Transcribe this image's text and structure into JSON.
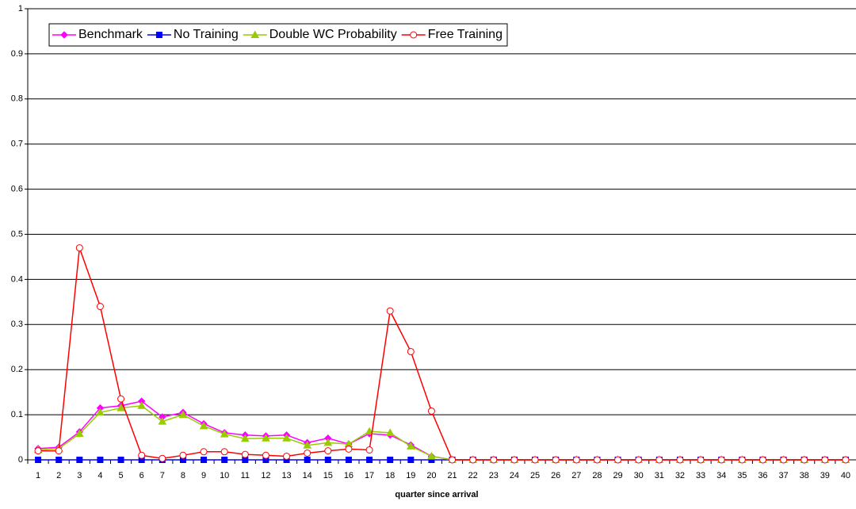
{
  "chart_data": {
    "type": "line",
    "x_label": "quarter since arrival",
    "categories": [
      1,
      2,
      3,
      4,
      5,
      6,
      7,
      8,
      9,
      10,
      11,
      12,
      13,
      14,
      15,
      16,
      17,
      18,
      19,
      20,
      21,
      22,
      23,
      24,
      25,
      26,
      27,
      28,
      29,
      30,
      31,
      32,
      33,
      34,
      35,
      36,
      37,
      38,
      39,
      40
    ],
    "ylim": [
      0,
      1
    ],
    "yticks": [
      0,
      0.1,
      0.2,
      0.3,
      0.4,
      0.5,
      0.6,
      0.7,
      0.8,
      0.9,
      1
    ],
    "grid": true,
    "legend": "top-left",
    "series": [
      {
        "name": "Benchmark",
        "color": "#ff00ff",
        "marker": "diamond",
        "values": [
          0.025,
          0.028,
          0.062,
          0.115,
          0.12,
          0.13,
          0.095,
          0.105,
          0.08,
          0.06,
          0.055,
          0.053,
          0.055,
          0.038,
          0.048,
          0.035,
          0.058,
          0.055,
          0.033,
          0.008,
          0,
          0,
          0,
          0,
          0,
          0,
          0,
          0,
          0,
          0,
          0,
          0,
          0,
          0,
          0,
          0,
          0,
          0,
          0,
          0
        ]
      },
      {
        "name": "No Training",
        "color": "#0000ff",
        "marker": "square",
        "values": [
          0,
          0,
          0,
          0,
          0,
          0,
          0,
          0,
          0,
          0,
          0,
          0,
          0,
          0,
          0,
          0,
          0,
          0,
          0,
          0,
          0,
          0,
          0,
          0,
          0,
          0,
          0,
          0,
          0,
          0,
          0,
          0,
          0,
          0,
          0,
          0,
          0,
          0,
          0,
          0
        ]
      },
      {
        "name": "Double WC Probability",
        "color": "#99cc00",
        "marker": "triangle",
        "values": [
          0.022,
          0.025,
          0.058,
          0.105,
          0.115,
          0.12,
          0.085,
          0.1,
          0.075,
          0.057,
          0.047,
          0.048,
          0.048,
          0.032,
          0.038,
          0.035,
          0.063,
          0.06,
          0.03,
          0.008,
          0,
          0,
          0,
          0,
          0,
          0,
          0,
          0,
          0,
          0,
          0,
          0,
          0,
          0,
          0,
          0,
          0,
          0,
          0,
          0
        ]
      },
      {
        "name": "Free Training",
        "color": "#ff0000",
        "marker": "circle",
        "values": [
          0.02,
          0.02,
          0.47,
          0.34,
          0.135,
          0.01,
          0.003,
          0.01,
          0.018,
          0.018,
          0.012,
          0.01,
          0.008,
          0.015,
          0.02,
          0.024,
          0.022,
          0.33,
          0.24,
          0.108,
          0,
          0,
          0,
          0,
          0,
          0,
          0,
          0,
          0,
          0,
          0,
          0,
          0,
          0,
          0,
          0,
          0,
          0,
          0,
          0
        ]
      }
    ]
  }
}
